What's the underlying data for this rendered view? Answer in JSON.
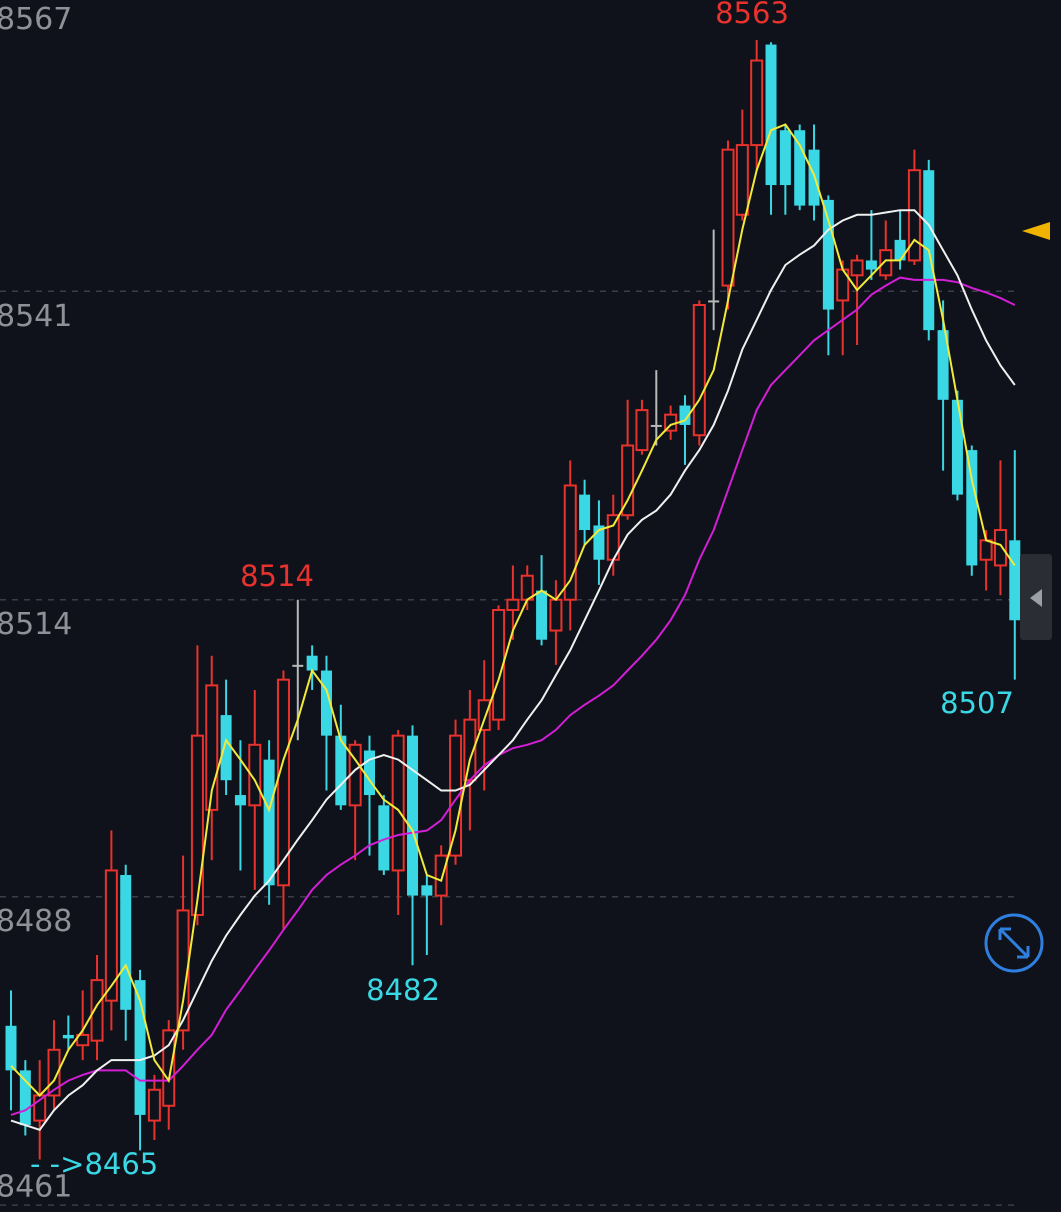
{
  "chart_data": {
    "type": "candlestick",
    "ylim": [
      8460.4,
      8566.5
    ],
    "yticks": [
      8461,
      8488,
      8514,
      8541,
      8567
    ],
    "grid": true,
    "up_color": "#e8322d",
    "down_color": "#3ad7e4",
    "flat_color": "#b8b8b8",
    "open": [
      8476.7,
      8472.8,
      8468.4,
      8470.6,
      8475.9,
      8475.0,
      8475.4,
      8478.9,
      8489.9,
      8480.7,
      8468.4,
      8469.7,
      8476.3,
      8486.4,
      8495.6,
      8503.9,
      8496.9,
      8496.0,
      8500.0,
      8489.0,
      8508.3,
      8509.1,
      8507.8,
      8502.1,
      8496.0,
      8500.8,
      8496.0,
      8490.3,
      8502.1,
      8489.0,
      8488.1,
      8491.6,
      8498.2,
      8502.6,
      8503.5,
      8513.1,
      8514.0,
      8514.8,
      8511.3,
      8514.0,
      8523.2,
      8520.5,
      8517.5,
      8521.4,
      8527.1,
      8529.3,
      8528.8,
      8531.0,
      8528.4,
      8540.2,
      8541.5,
      8547.7,
      8553.8,
      8562.6,
      8555.1,
      8555.1,
      8553.4,
      8549.0,
      8540.2,
      8542.4,
      8543.7,
      8542.4,
      8545.5,
      8543.7,
      8551.6,
      8537.6,
      8531.5,
      8527.1,
      8517.5,
      8517.0,
      8519.2
    ],
    "high": [
      8479.8,
      8473.7,
      8473.7,
      8477.2,
      8477.6,
      8479.8,
      8482.9,
      8493.8,
      8490.8,
      8481.6,
      8472.4,
      8477.2,
      8491.6,
      8510.0,
      8509.1,
      8507.0,
      8501.7,
      8506.1,
      8501.7,
      8507.8,
      8514.0,
      8510.0,
      8509.1,
      8504.8,
      8501.7,
      8502.1,
      8496.9,
      8502.6,
      8503.0,
      8489.9,
      8492.5,
      8503.5,
      8506.1,
      8508.7,
      8513.5,
      8517.0,
      8517.0,
      8517.9,
      8515.7,
      8526.2,
      8524.5,
      8522.7,
      8523.2,
      8531.5,
      8531.5,
      8534.1,
      8531.0,
      8531.9,
      8540.2,
      8546.4,
      8554.2,
      8556.9,
      8563.0,
      8562.8,
      8555.6,
      8555.6,
      8555.6,
      8549.4,
      8543.7,
      8544.2,
      8548.1,
      8547.2,
      8548.1,
      8553.4,
      8552.5,
      8540.2,
      8532.3,
      8527.5,
      8520.1,
      8526.2,
      8527.1
    ],
    "low": [
      8469.3,
      8467.1,
      8465.0,
      8469.3,
      8474.6,
      8473.7,
      8473.7,
      8476.3,
      8475.4,
      8465.8,
      8466.7,
      8467.6,
      8474.6,
      8485.5,
      8491.2,
      8496.9,
      8490.3,
      8488.6,
      8487.3,
      8485.1,
      8501.7,
      8506.1,
      8497.3,
      8495.6,
      8491.2,
      8491.6,
      8489.9,
      8486.4,
      8482.0,
      8482.9,
      8485.5,
      8490.8,
      8493.8,
      8497.3,
      8502.6,
      8510.5,
      8513.1,
      8510.0,
      8508.3,
      8511.3,
      8518.8,
      8515.3,
      8516.1,
      8521.0,
      8526.7,
      8527.5,
      8528.0,
      8525.8,
      8527.5,
      8537.6,
      8539.4,
      8547.2,
      8551.6,
      8547.7,
      8547.7,
      8548.1,
      8547.2,
      8535.4,
      8535.4,
      8536.3,
      8542.0,
      8542.0,
      8542.9,
      8543.3,
      8536.7,
      8525.3,
      8522.7,
      8516.1,
      8514.8,
      8514.4,
      8507.0
    ],
    "close": [
      8472.8,
      8468.0,
      8470.6,
      8474.6,
      8475.6,
      8475.9,
      8480.7,
      8490.3,
      8478.1,
      8468.9,
      8471.1,
      8476.3,
      8486.8,
      8502.1,
      8506.5,
      8498.2,
      8496.0,
      8501.3,
      8489.0,
      8507.0,
      8508.3,
      8507.8,
      8502.1,
      8496.0,
      8501.3,
      8496.9,
      8490.3,
      8502.1,
      8488.1,
      8488.1,
      8491.6,
      8502.1,
      8503.5,
      8505.2,
      8513.1,
      8514.0,
      8516.1,
      8510.5,
      8514.0,
      8524.0,
      8520.1,
      8517.5,
      8521.4,
      8527.5,
      8530.6,
      8529.3,
      8530.2,
      8529.3,
      8539.8,
      8540.2,
      8553.4,
      8553.8,
      8561.2,
      8550.3,
      8550.3,
      8548.5,
      8548.5,
      8539.4,
      8542.9,
      8543.7,
      8542.9,
      8544.6,
      8543.7,
      8551.6,
      8537.6,
      8531.5,
      8523.2,
      8517.0,
      8519.2,
      8520.1,
      8512.2
    ],
    "lines": [
      {
        "color": "#d21fd6",
        "values": [
          8468.9,
          8469.3,
          8470.2,
          8471.1,
          8471.9,
          8472.4,
          8472.8,
          8472.8,
          8472.8,
          8471.9,
          8471.9,
          8471.9,
          8473.2,
          8474.6,
          8475.9,
          8478.1,
          8479.8,
          8481.6,
          8483.3,
          8485.1,
          8486.8,
          8488.6,
          8489.9,
          8490.8,
          8491.6,
          8492.5,
          8493.0,
          8493.4,
          8493.6,
          8493.8,
          8494.7,
          8496.5,
          8498.2,
          8499.5,
          8500.4,
          8501.0,
          8501.3,
          8501.7,
          8502.6,
          8503.9,
          8504.8,
          8505.6,
          8506.5,
          8507.8,
          8509.1,
          8510.5,
          8512.2,
          8514.4,
          8517.5,
          8520.1,
          8523.6,
          8527.1,
          8530.6,
          8532.8,
          8534.1,
          8535.4,
          8536.7,
          8537.6,
          8538.5,
          8539.4,
          8540.7,
          8541.5,
          8542.2,
          8542.0,
          8542.0,
          8542.0,
          8541.8,
          8541.3,
          8540.9,
          8540.4,
          8539.8
        ]
      },
      {
        "color": "#f0f0f0",
        "values": [
          8468.4,
          8468.0,
          8467.6,
          8469.3,
          8470.6,
          8471.5,
          8472.8,
          8473.7,
          8473.7,
          8473.7,
          8474.1,
          8475.0,
          8477.2,
          8479.8,
          8482.4,
          8484.6,
          8486.4,
          8488.1,
          8489.4,
          8491.2,
          8493.0,
          8494.7,
          8496.5,
          8497.8,
          8499.1,
          8500.0,
          8500.4,
          8500.0,
          8499.1,
          8498.2,
          8497.3,
          8497.3,
          8497.8,
          8499.1,
          8500.4,
          8501.7,
          8503.5,
          8505.2,
          8507.4,
          8509.6,
          8512.2,
          8514.8,
          8517.5,
          8519.7,
          8521.0,
          8521.8,
          8523.2,
          8525.3,
          8527.1,
          8529.3,
          8532.3,
          8535.9,
          8538.5,
          8541.1,
          8543.3,
          8544.2,
          8545.0,
          8546.4,
          8547.2,
          8547.7,
          8547.7,
          8547.9,
          8548.1,
          8548.1,
          8546.8,
          8544.6,
          8542.4,
          8539.4,
          8536.7,
          8534.5,
          8532.8
        ]
      },
      {
        "color": "#f2e93a",
        "values": [
          8473.2,
          8471.9,
          8470.6,
          8471.9,
          8474.6,
          8476.3,
          8478.5,
          8480.2,
          8482.0,
          8478.9,
          8473.7,
          8471.9,
          8478.9,
          8487.7,
          8497.3,
          8501.7,
          8500.0,
          8498.2,
          8495.6,
          8500.0,
          8503.5,
          8507.8,
          8506.1,
          8501.7,
          8500.0,
          8498.2,
          8496.5,
          8495.6,
          8493.8,
          8489.9,
          8489.4,
          8493.8,
          8500.0,
          8503.5,
          8507.0,
          8511.3,
          8514.0,
          8514.8,
          8514.0,
          8515.7,
          8518.8,
          8520.1,
          8520.5,
          8522.7,
          8525.3,
          8528.0,
          8529.3,
          8529.7,
          8531.5,
          8534.1,
          8540.2,
          8546.4,
          8551.6,
          8555.1,
          8555.6,
          8553.8,
          8551.2,
          8547.2,
          8542.9,
          8541.1,
          8542.4,
          8543.7,
          8543.7,
          8545.5,
          8544.6,
          8538.5,
          8531.5,
          8524.5,
          8519.2,
          8518.8,
          8517.0
        ]
      }
    ],
    "annotations": [
      "8563",
      "8514",
      "8482",
      "8507",
      "- ->8465"
    ]
  }
}
